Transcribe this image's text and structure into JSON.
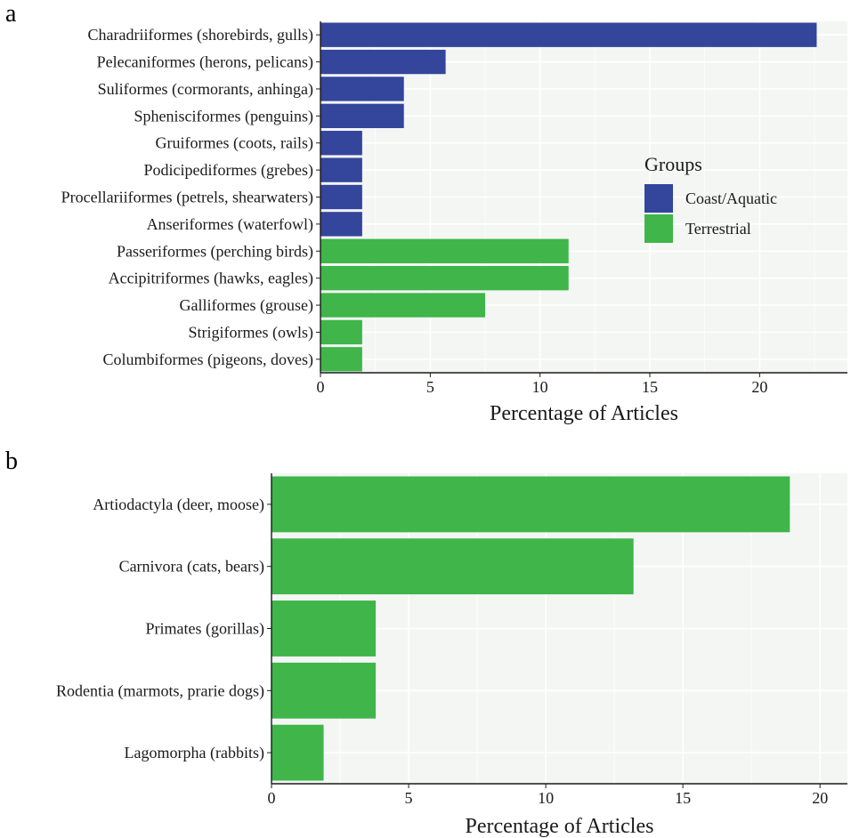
{
  "colors": {
    "coast_aquatic": "#34459c",
    "terrestrial": "#3fb54a",
    "panel_bg": "#f4f6f4",
    "grid": "#ffffff"
  },
  "chart_data": [
    {
      "panel": "a",
      "type": "bar",
      "orientation": "horizontal",
      "xlabel": "Percentage of Articles",
      "xlim": [
        0,
        24
      ],
      "xticks": [
        0,
        5,
        10,
        15,
        20
      ],
      "grid": true,
      "legend": {
        "title": "Groups",
        "placement": "right",
        "entries": [
          "Coast/Aquatic",
          "Terrestrial"
        ]
      },
      "categories": [
        "Charadriiformes (shorebirds, gulls)",
        "Pelecaniformes (herons, pelicans)",
        "Suliformes (cormorants, anhinga)",
        "Sphenisciformes (penguins)",
        "Gruiformes (coots, rails)",
        "Podicipediformes (grebes)",
        "Procellariiformes (petrels, shearwaters)",
        "Anseriformes (waterfowl)",
        "Passeriformes (perching birds)",
        "Accipitriformes (hawks, eagles)",
        "Galliformes (grouse)",
        "Strigiformes (owls)",
        "Columbiformes (pigeons, doves)"
      ],
      "values": [
        22.6,
        5.7,
        3.8,
        3.8,
        1.9,
        1.9,
        1.9,
        1.9,
        11.3,
        11.3,
        7.5,
        1.9,
        1.9
      ],
      "groups": [
        "Coast/Aquatic",
        "Coast/Aquatic",
        "Coast/Aquatic",
        "Coast/Aquatic",
        "Coast/Aquatic",
        "Coast/Aquatic",
        "Coast/Aquatic",
        "Coast/Aquatic",
        "Terrestrial",
        "Terrestrial",
        "Terrestrial",
        "Terrestrial",
        "Terrestrial"
      ]
    },
    {
      "panel": "b",
      "type": "bar",
      "orientation": "horizontal",
      "xlabel": "Percentage of Articles",
      "xlim": [
        0,
        21
      ],
      "xticks": [
        0,
        5,
        10,
        15,
        20
      ],
      "grid": true,
      "categories": [
        "Artiodactyla (deer, moose)",
        "Carnivora (cats, bears)",
        "Primates (gorillas)",
        "Rodentia (marmots, prarie dogs)",
        "Lagomorpha (rabbits)"
      ],
      "values": [
        18.9,
        13.2,
        3.8,
        3.8,
        1.9
      ],
      "groups": [
        "Terrestrial",
        "Terrestrial",
        "Terrestrial",
        "Terrestrial",
        "Terrestrial"
      ]
    }
  ]
}
